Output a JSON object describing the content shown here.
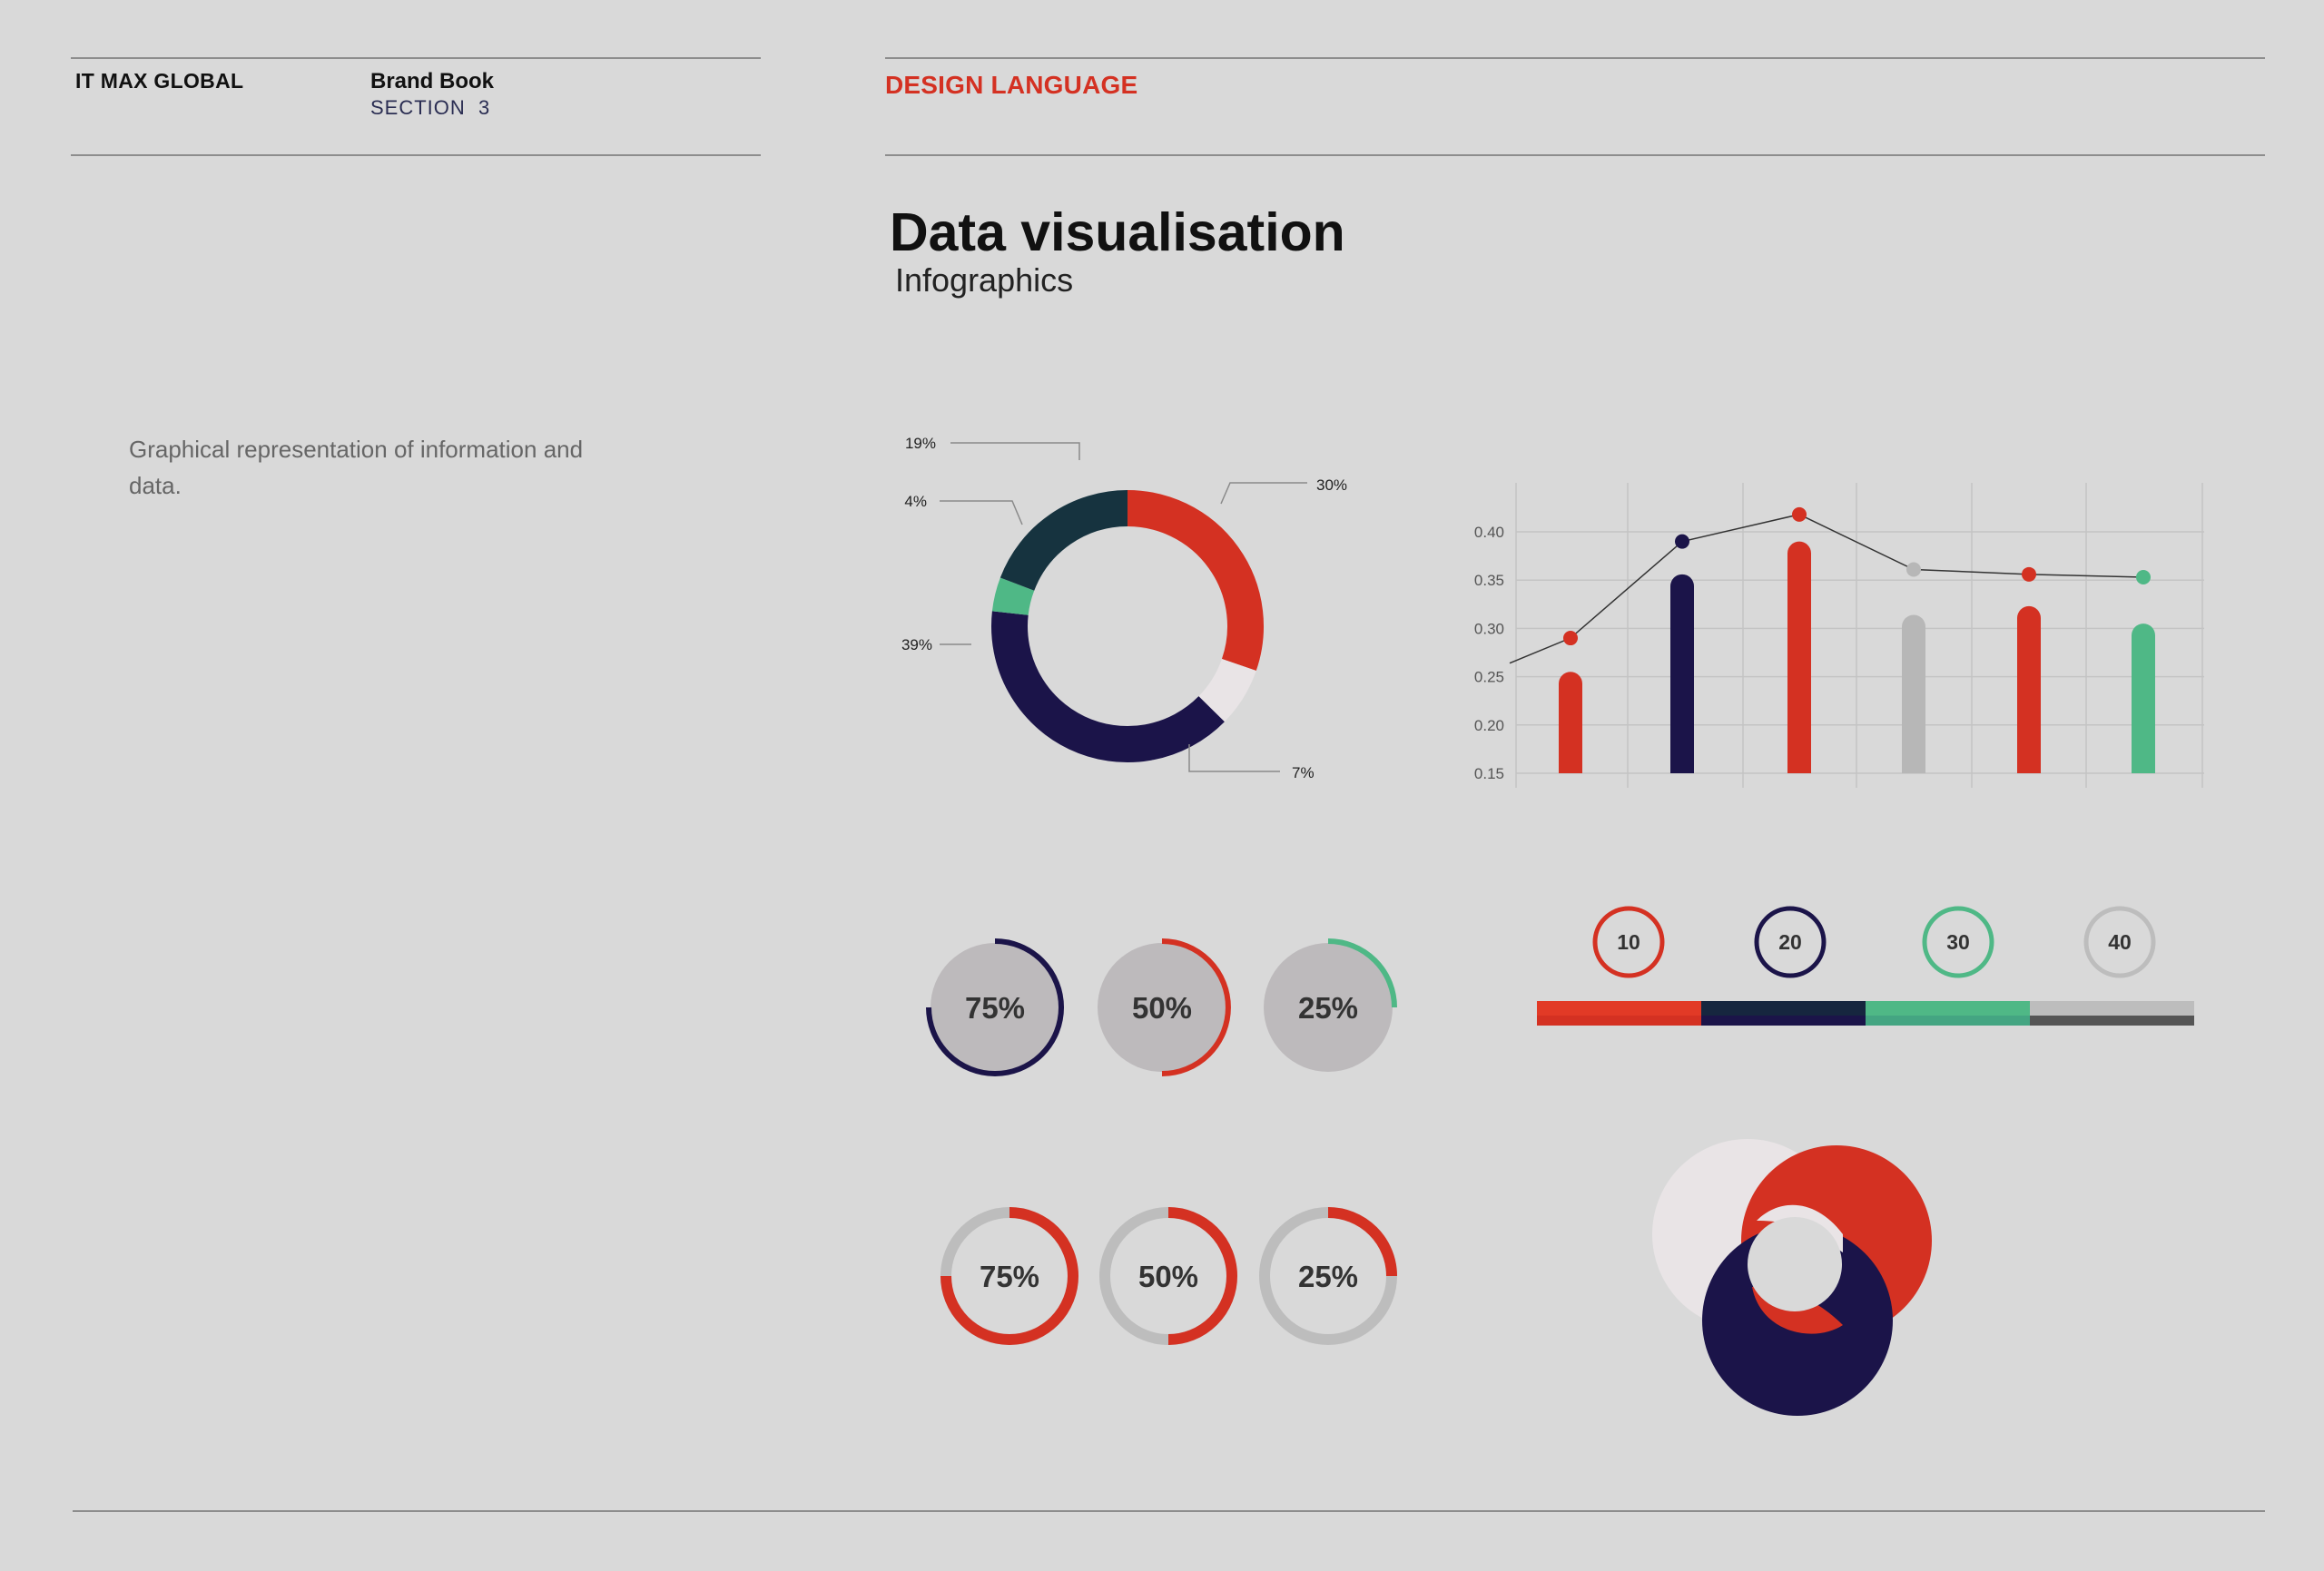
{
  "header": {
    "company": "IT MAX GLOBAL",
    "book_title": "Brand Book",
    "book_section": "SECTION  3",
    "section_title": "DESIGN LANGUAGE"
  },
  "main": {
    "title": "Data visualisation",
    "subtitle": "Infographics",
    "description": "Graphical representation of information and data."
  },
  "colors": {
    "background": "#d9d9d9",
    "red": "#d43122",
    "navy": "#1b1449",
    "teal_dark": "#16333f",
    "green": "#4fb886",
    "light": "#e9e4e6",
    "grey": "#bdbdbd"
  },
  "chart_data": [
    {
      "type": "pie",
      "variant": "donut",
      "slices": [
        {
          "label": "30%",
          "value": 30,
          "color": "#d43122"
        },
        {
          "label": "7%",
          "value": 7,
          "color": "#e9e4e6"
        },
        {
          "label": "39%",
          "value": 39,
          "color": "#1b1449"
        },
        {
          "label": "4%",
          "value": 4,
          "color": "#4fb886"
        },
        {
          "label": "19%",
          "value": 19,
          "color": "#16333f"
        }
      ]
    },
    {
      "type": "bar",
      "overlay": "line",
      "ylim": [
        0.15,
        0.42
      ],
      "yticks": [
        "0.40",
        "0.35",
        "0.30",
        "0.25",
        "0.20",
        "0.15"
      ],
      "ytick_values": [
        0.4,
        0.35,
        0.3,
        0.25,
        0.2,
        0.15
      ],
      "grid": true,
      "values": [
        0.255,
        0.356,
        0.39,
        0.314,
        0.323,
        0.305
      ],
      "bar_colors": [
        "#d43122",
        "#1b1449",
        "#d43122",
        "#b7b7b7",
        "#d43122",
        "#4fb886"
      ],
      "line_values": [
        0.29,
        0.39,
        0.418,
        0.361,
        0.356,
        0.353
      ],
      "line_start": 0.264
    },
    {
      "type": "pie",
      "variant": "progress-rings",
      "items": [
        {
          "label": "75%",
          "value": 0.75,
          "color": "#1b1449",
          "style": "filled"
        },
        {
          "label": "50%",
          "value": 0.5,
          "color": "#d43122",
          "style": "filled"
        },
        {
          "label": "25%",
          "value": 0.25,
          "color": "#4fb886",
          "style": "filled"
        },
        {
          "label": "75%",
          "value": 0.75,
          "color": "#d43122",
          "style": "ring"
        },
        {
          "label": "50%",
          "value": 0.5,
          "color": "#d43122",
          "style": "ring"
        },
        {
          "label": "25%",
          "value": 0.25,
          "color": "#d43122",
          "style": "ring"
        }
      ]
    },
    {
      "type": "bar",
      "variant": "segmented-scale",
      "markers": [
        {
          "label": "10",
          "color": "#d43122"
        },
        {
          "label": "20",
          "color": "#1b1449"
        },
        {
          "label": "30",
          "color": "#4fb886"
        },
        {
          "label": "40",
          "color": "#bdbdbd"
        }
      ],
      "segments": [
        {
          "color": "#e23a26",
          "under": "#d43122"
        },
        {
          "color": "#16263f",
          "under": "#1b1449"
        },
        {
          "color": "#4fb886",
          "under": "#44a582"
        },
        {
          "color": "#bdbdbd",
          "under": "#555555"
        }
      ]
    }
  ]
}
